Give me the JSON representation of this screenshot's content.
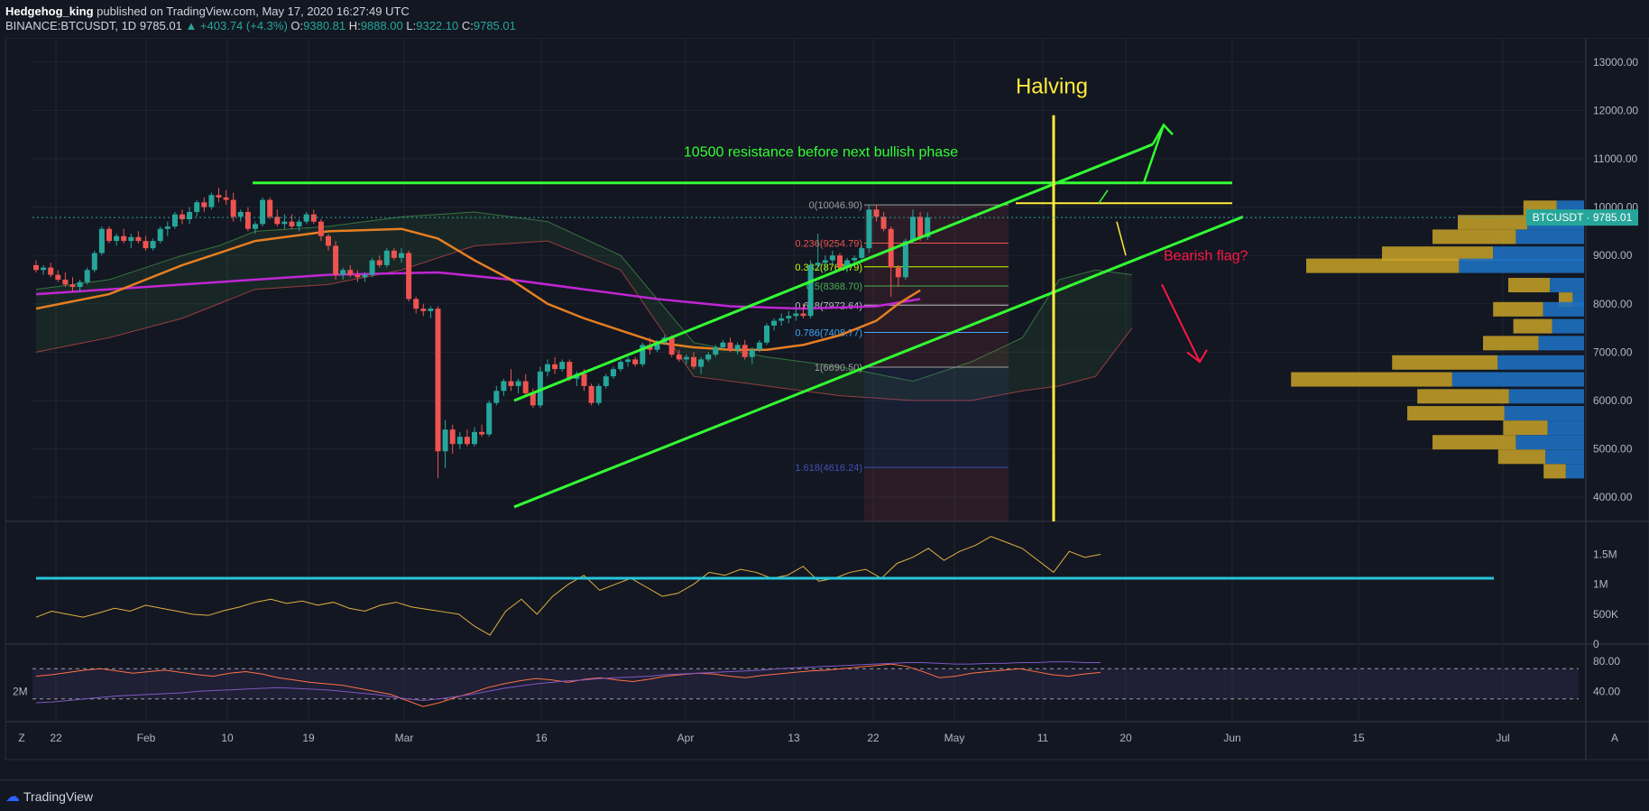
{
  "header": {
    "author": "Hedgehog_king",
    "published": "published on TradingView.com, May 17, 2020 16:27:49 UTC",
    "symbol": "BINANCE:BTCUSDT, 1D",
    "last": "9785.01",
    "change": "▲ +403.74 (+4.3%)",
    "o_label": "O:",
    "o": "9380.81",
    "h_label": "H:",
    "h": "9888.00",
    "l_label": "L:",
    "l": "9322.10",
    "c_label": "C:",
    "c": "9785.01"
  },
  "footer": {
    "brand": "TradingView"
  },
  "colors": {
    "bg": "#131722",
    "up": "#26a69a",
    "down": "#ef5350",
    "green_line": "#33ff33",
    "yellow": "#ffeb3b",
    "purple": "#c026d3",
    "orange": "#e67e22"
  },
  "chart_data": [
    {
      "type": "candlestick",
      "symbol": "BINANCE:BTCUSDT",
      "ylim": [
        3500,
        13500
      ],
      "yticks": [
        "13000.00",
        "12000.00",
        "11000.00",
        "10000.00",
        "9000.00",
        "8000.00",
        "7000.00",
        "6000.00",
        "5000.00",
        "4000.00"
      ],
      "xticks": [
        "22",
        "Feb",
        "10",
        "19",
        "Mar",
        "16",
        "Apr",
        "13",
        "22",
        "May",
        "11",
        "20",
        "Jun",
        "15",
        "Jul"
      ],
      "price_tag": "BTCUSDT · 9785.01",
      "annotations": {
        "halving": "Halving",
        "resistance": "10500 resistance before next bullish phase",
        "bearish": "Bearish flag?",
        "z_label": "Z",
        "a_label": "A",
        "timeframe": "2M"
      },
      "fib_levels": [
        {
          "label": "0(10046.90)",
          "value": 10046.9
        },
        {
          "label": "0.236(9254.79)",
          "value": 9254.79
        },
        {
          "label": "0.382(8764.79)",
          "value": 8764.79
        },
        {
          "label": "0.5(8368.70)",
          "value": 8368.7
        },
        {
          "label": "0.618(7972.64)",
          "value": 7972.64
        },
        {
          "label": "0.786(7408.77)",
          "value": 7408.77
        },
        {
          "label": "1(6690.50)",
          "value": 6690.5
        },
        {
          "label": "1.618(4616.24)",
          "value": 4616.24
        }
      ],
      "candles": [
        [
          8800,
          8900,
          8650,
          8700
        ],
        [
          8700,
          8800,
          8600,
          8750
        ],
        [
          8750,
          8850,
          8550,
          8600
        ],
        [
          8600,
          8700,
          8450,
          8500
        ],
        [
          8500,
          8650,
          8350,
          8400
        ],
        [
          8400,
          8550,
          8250,
          8350
        ],
        [
          8350,
          8500,
          8250,
          8450
        ],
        [
          8450,
          8750,
          8400,
          8700
        ],
        [
          8700,
          9100,
          8650,
          9050
        ],
        [
          9050,
          9600,
          9000,
          9550
        ],
        [
          9550,
          9600,
          9250,
          9300
        ],
        [
          9300,
          9450,
          9200,
          9400
        ],
        [
          9400,
          9550,
          9250,
          9300
        ],
        [
          9300,
          9450,
          9150,
          9380
        ],
        [
          9380,
          9500,
          9250,
          9300
        ],
        [
          9300,
          9400,
          9100,
          9150
        ],
        [
          9150,
          9350,
          9100,
          9300
        ],
        [
          9300,
          9600,
          9250,
          9550
        ],
        [
          9550,
          9700,
          9400,
          9600
        ],
        [
          9600,
          9900,
          9550,
          9850
        ],
        [
          9850,
          9950,
          9650,
          9750
        ],
        [
          9750,
          10000,
          9650,
          9900
        ],
        [
          9900,
          10150,
          9800,
          10100
        ],
        [
          10100,
          10200,
          9900,
          10000
        ],
        [
          10000,
          10300,
          9950,
          10250
        ],
        [
          10250,
          10400,
          10100,
          10200
        ],
        [
          10200,
          10350,
          10050,
          10150
        ],
        [
          10150,
          10300,
          9700,
          9800
        ],
        [
          9800,
          9950,
          9700,
          9900
        ],
        [
          9900,
          10000,
          9500,
          9550
        ],
        [
          9550,
          9700,
          9450,
          9650
        ],
        [
          9650,
          10200,
          9600,
          10150
        ],
        [
          10150,
          10200,
          9750,
          9800
        ],
        [
          9800,
          9950,
          9600,
          9650
        ],
        [
          9650,
          9850,
          9550,
          9700
        ],
        [
          9700,
          9850,
          9550,
          9600
        ],
        [
          9600,
          9750,
          9500,
          9700
        ],
        [
          9700,
          9900,
          9650,
          9850
        ],
        [
          9850,
          9950,
          9650,
          9700
        ],
        [
          9700,
          9750,
          9300,
          9400
        ],
        [
          9400,
          9450,
          9100,
          9200
        ],
        [
          9200,
          9300,
          8500,
          8600
        ],
        [
          8600,
          8750,
          8500,
          8700
        ],
        [
          8700,
          8800,
          8550,
          8600
        ],
        [
          8600,
          8700,
          8450,
          8550
        ],
        [
          8550,
          8650,
          8450,
          8600
        ],
        [
          8600,
          8950,
          8550,
          8900
        ],
        [
          8900,
          9000,
          8750,
          8800
        ],
        [
          8800,
          9150,
          8750,
          9100
        ],
        [
          9100,
          9150,
          8900,
          8950
        ],
        [
          8950,
          9150,
          8850,
          9050
        ],
        [
          9050,
          9100,
          8050,
          8100
        ],
        [
          8100,
          8150,
          7800,
          7900
        ],
        [
          7900,
          8000,
          7750,
          7850
        ],
        [
          7850,
          7950,
          7700,
          7900
        ],
        [
          7900,
          7950,
          4400,
          4950
        ],
        [
          4950,
          5600,
          4600,
          5400
        ],
        [
          5400,
          5500,
          4900,
          5100
        ],
        [
          5100,
          5350,
          5000,
          5250
        ],
        [
          5250,
          5400,
          5050,
          5100
        ],
        [
          5100,
          5450,
          5050,
          5350
        ],
        [
          5350,
          5500,
          5250,
          5300
        ],
        [
          5300,
          6000,
          5250,
          5950
        ],
        [
          5950,
          6300,
          5900,
          6200
        ],
        [
          6200,
          6450,
          6100,
          6400
        ],
        [
          6400,
          6650,
          6200,
          6300
        ],
        [
          6300,
          6450,
          6150,
          6400
        ],
        [
          6400,
          6550,
          6100,
          6150
        ],
        [
          6150,
          6250,
          5850,
          5900
        ],
        [
          5900,
          6700,
          5850,
          6600
        ],
        [
          6600,
          6850,
          6500,
          6750
        ],
        [
          6750,
          6900,
          6550,
          6650
        ],
        [
          6650,
          6850,
          6600,
          6800
        ],
        [
          6800,
          6850,
          6400,
          6450
        ],
        [
          6450,
          6600,
          6300,
          6550
        ],
        [
          6550,
          6650,
          6200,
          6300
        ],
        [
          6300,
          6350,
          5900,
          5950
        ],
        [
          5950,
          6350,
          5900,
          6300
        ],
        [
          6300,
          6550,
          6250,
          6500
        ],
        [
          6500,
          6700,
          6450,
          6650
        ],
        [
          6650,
          6850,
          6600,
          6800
        ],
        [
          6800,
          6900,
          6700,
          6850
        ],
        [
          6850,
          6900,
          6700,
          6750
        ],
        [
          6750,
          7200,
          6700,
          7150
        ],
        [
          7150,
          7300,
          6950,
          7050
        ],
        [
          7050,
          7250,
          7000,
          7200
        ],
        [
          7200,
          7350,
          7150,
          7300
        ],
        [
          7300,
          7350,
          6900,
          6950
        ],
        [
          6950,
          7050,
          6800,
          6850
        ],
        [
          6850,
          6950,
          6750,
          6900
        ],
        [
          6900,
          7000,
          6650,
          6700
        ],
        [
          6700,
          6900,
          6550,
          6850
        ],
        [
          6850,
          7000,
          6800,
          6950
        ],
        [
          6950,
          7150,
          6900,
          7100
        ],
        [
          7100,
          7250,
          7050,
          7200
        ],
        [
          7200,
          7300,
          7000,
          7050
        ],
        [
          7050,
          7200,
          6950,
          7150
        ],
        [
          7150,
          7250,
          6850,
          6900
        ],
        [
          6900,
          7100,
          6750,
          7050
        ],
        [
          7050,
          7250,
          7000,
          7200
        ],
        [
          7200,
          7600,
          7150,
          7550
        ],
        [
          7550,
          7700,
          7450,
          7650
        ],
        [
          7650,
          7800,
          7550,
          7700
        ],
        [
          7700,
          7850,
          7600,
          7750
        ],
        [
          7750,
          7900,
          7650,
          7800
        ],
        [
          7800,
          8000,
          7700,
          7750
        ],
        [
          7750,
          8900,
          7700,
          8800
        ],
        [
          8800,
          9450,
          8700,
          8850
        ],
        [
          8850,
          9000,
          8650,
          8900
        ],
        [
          8900,
          9100,
          8800,
          9000
        ],
        [
          9000,
          9050,
          8700,
          8750
        ],
        [
          8750,
          8950,
          8650,
          8900
        ],
        [
          8900,
          9000,
          8800,
          8950
        ],
        [
          8950,
          9200,
          8850,
          9150
        ],
        [
          9150,
          10050,
          9050,
          9950
        ],
        [
          9950,
          10050,
          9700,
          9800
        ],
        [
          9800,
          9900,
          9500,
          9550
        ],
        [
          9550,
          9600,
          8150,
          8750
        ],
        [
          8750,
          8800,
          8350,
          8550
        ],
        [
          8550,
          9350,
          8500,
          9300
        ],
        [
          9300,
          9950,
          9250,
          9800
        ],
        [
          9800,
          9900,
          9300,
          9380
        ],
        [
          9380,
          9888,
          9322,
          9785
        ]
      ],
      "ma_orange": [
        [
          0,
          7900
        ],
        [
          10,
          8200
        ],
        [
          20,
          8800
        ],
        [
          30,
          9300
        ],
        [
          40,
          9500
        ],
        [
          50,
          9550
        ],
        [
          55,
          9350
        ],
        [
          60,
          8900
        ],
        [
          65,
          8500
        ],
        [
          70,
          8000
        ],
        [
          75,
          7700
        ],
        [
          80,
          7450
        ],
        [
          85,
          7200
        ],
        [
          90,
          7100
        ],
        [
          95,
          7050
        ],
        [
          100,
          7050
        ],
        [
          105,
          7150
        ],
        [
          110,
          7350
        ],
        [
          115,
          7650
        ],
        [
          118,
          8000
        ],
        [
          121,
          8280
        ]
      ],
      "ma_purple": [
        [
          0,
          8200
        ],
        [
          20,
          8400
        ],
        [
          40,
          8600
        ],
        [
          55,
          8650
        ],
        [
          65,
          8500
        ],
        [
          75,
          8300
        ],
        [
          85,
          8100
        ],
        [
          95,
          7950
        ],
        [
          105,
          7900
        ],
        [
          115,
          7950
        ],
        [
          121,
          8100
        ]
      ],
      "volume": {
        "yticks": [
          "1.5M",
          "1M",
          "500K",
          "0"
        ],
        "ylim": [
          0,
          1900000
        ],
        "line": [
          450000,
          550000,
          500000,
          450000,
          520000,
          600000,
          550000,
          650000,
          600000,
          550000,
          500000,
          480000,
          560000,
          620000,
          700000,
          750000,
          680000,
          720000,
          650000,
          700000,
          600000,
          550000,
          650000,
          700000,
          620000,
          580000,
          540000,
          500000,
          300000,
          150000,
          550000,
          750000,
          500000,
          800000,
          1000000,
          1150000,
          900000,
          1000000,
          1100000,
          950000,
          800000,
          850000,
          1000000,
          1200000,
          1150000,
          1250000,
          1200000,
          1100000,
          1150000,
          1300000,
          1050000,
          1100000,
          1200000,
          1250000,
          1100000,
          1350000,
          1450000,
          1600000,
          1400000,
          1550000,
          1650000,
          1800000,
          1700000,
          1600000,
          1400000,
          1200000,
          1550000,
          1450000,
          1500000
        ],
        "baseline": 1100000
      },
      "rsi": {
        "yticks": [
          "80.00",
          "40.00"
        ],
        "ylim": [
          0,
          100
        ],
        "upper": 70,
        "lower": 30,
        "orange": [
          60,
          62,
          65,
          68,
          70,
          67,
          64,
          66,
          68,
          65,
          62,
          60,
          64,
          66,
          63,
          58,
          55,
          52,
          50,
          48,
          44,
          40,
          36,
          28,
          20,
          25,
          32,
          38,
          45,
          50,
          54,
          57,
          55,
          52,
          56,
          58,
          55,
          53,
          56,
          60,
          62,
          64,
          63,
          60,
          58,
          61,
          63,
          65,
          67,
          68,
          70,
          72,
          74,
          76,
          73,
          66,
          58,
          60,
          64,
          66,
          68,
          70,
          66,
          62,
          60,
          63,
          65
        ],
        "purple": [
          25,
          26,
          28,
          30,
          32,
          34,
          35,
          36,
          37,
          38,
          40,
          41,
          42,
          43,
          44,
          45,
          44,
          43,
          42,
          40,
          38,
          36,
          33,
          30,
          28,
          30,
          33,
          36,
          40,
          44,
          47,
          50,
          52,
          54,
          55,
          57,
          58,
          59,
          60,
          62,
          63,
          64,
          65,
          66,
          67,
          68,
          70,
          71,
          72,
          73,
          74,
          75,
          76,
          77,
          78,
          78,
          77,
          76,
          76,
          77,
          77,
          78,
          78,
          79,
          79,
          78,
          78
        ]
      }
    }
  ]
}
